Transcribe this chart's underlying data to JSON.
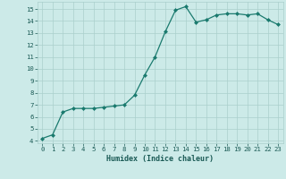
{
  "xlabel": "Humidex (Indice chaleur)",
  "x": [
    0,
    1,
    2,
    3,
    4,
    5,
    6,
    7,
    8,
    9,
    10,
    11,
    12,
    13,
    14,
    15,
    16,
    17,
    18,
    19,
    20,
    21,
    22,
    23
  ],
  "y": [
    4.2,
    4.5,
    6.4,
    6.7,
    6.7,
    6.7,
    6.8,
    6.9,
    7.0,
    7.8,
    9.5,
    11.0,
    13.1,
    14.9,
    15.2,
    13.9,
    14.1,
    14.5,
    14.6,
    14.6,
    14.5,
    14.6,
    14.1,
    13.7
  ],
  "line_color": "#1a7a6e",
  "marker": "D",
  "marker_size": 2.0,
  "bg_color": "#cceae8",
  "grid_color": "#aacfcc",
  "ylim": [
    3.8,
    15.6
  ],
  "xlim": [
    -0.5,
    23.5
  ],
  "yticks": [
    4,
    5,
    6,
    7,
    8,
    9,
    10,
    11,
    12,
    13,
    14,
    15
  ],
  "xticks": [
    0,
    1,
    2,
    3,
    4,
    5,
    6,
    7,
    8,
    9,
    10,
    11,
    12,
    13,
    14,
    15,
    16,
    17,
    18,
    19,
    20,
    21,
    22,
    23
  ],
  "tick_fontsize": 5.2,
  "xlabel_fontsize": 6.0,
  "linewidth": 0.9
}
